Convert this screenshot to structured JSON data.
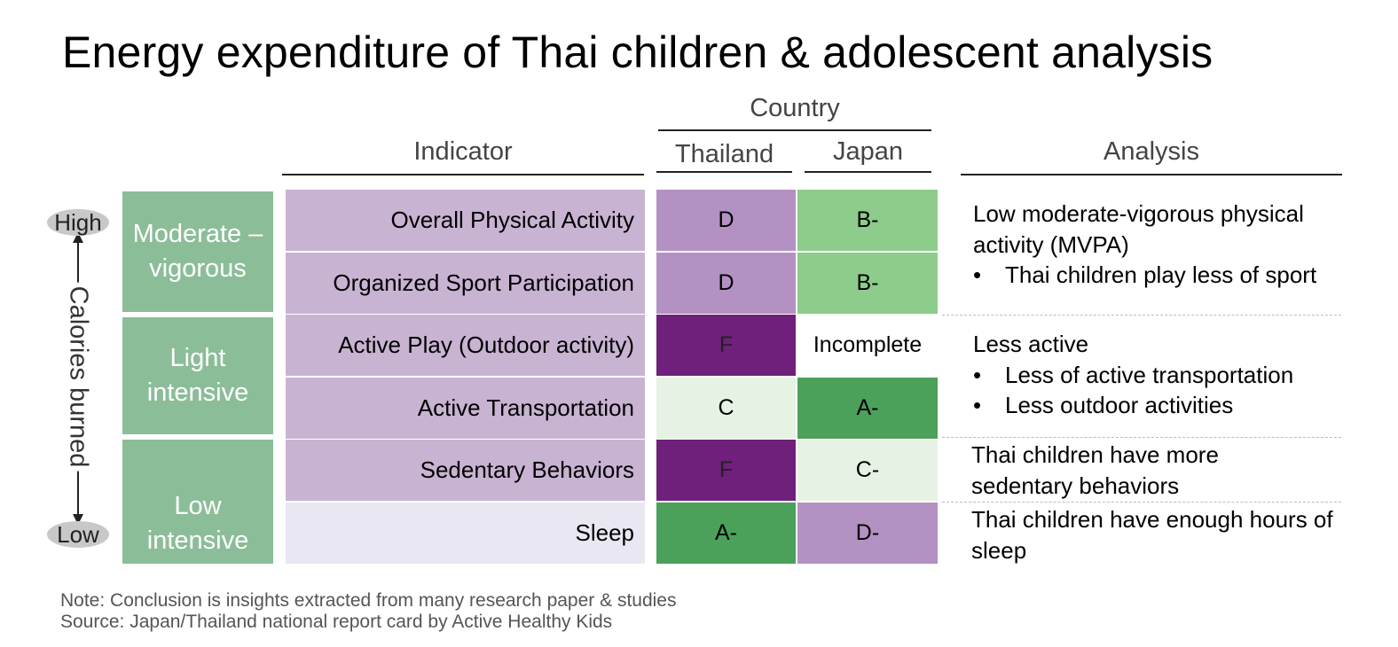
{
  "title": "Energy expenditure of Thai children & adolescent analysis",
  "headers": {
    "country": "Country",
    "indicator": "Indicator",
    "thailand": "Thailand",
    "japan": "Japan",
    "analysis": "Analysis"
  },
  "axis": {
    "high": "High",
    "low": "Low",
    "label": "Calories burned"
  },
  "groups": [
    {
      "line1": "Moderate –",
      "line2": "vigorous"
    },
    {
      "line1": "Light",
      "line2": "intensive"
    },
    {
      "line1": "Low",
      "line2": "intensive"
    }
  ],
  "rows": [
    {
      "indicator": "Overall Physical Activity",
      "thailand": "D",
      "japan": "B-",
      "indicator_bg": "#c9b3d3",
      "thailand_bg": "#b391c3",
      "japan_bg": "#8dcc8a"
    },
    {
      "indicator": "Organized Sport Participation",
      "thailand": "D",
      "japan": "B-",
      "indicator_bg": "#c9b3d3",
      "thailand_bg": "#b391c3",
      "japan_bg": "#8dcc8a"
    },
    {
      "indicator": "Active Play (Outdoor activity)",
      "thailand": "F",
      "japan": "Incomplete",
      "indicator_bg": "#c9b3d3",
      "thailand_bg": "#6e207b",
      "japan_bg": "#ffffff"
    },
    {
      "indicator": "Active Transportation",
      "thailand": "C",
      "japan": "A-",
      "indicator_bg": "#c9b3d3",
      "thailand_bg": "#e6f2e3",
      "japan_bg": "#4ba05a"
    },
    {
      "indicator": "Sedentary Behaviors",
      "thailand": "F",
      "japan": "C-",
      "indicator_bg": "#c9b3d3",
      "thailand_bg": "#6e207b",
      "japan_bg": "#e6f2e3"
    },
    {
      "indicator": "Sleep",
      "thailand": "A-",
      "japan": "D-",
      "indicator_bg": "#e9e7f1",
      "thailand_bg": "#4ba05a",
      "japan_bg": "#b391c3"
    }
  ],
  "analysis": [
    {
      "heading": "Low moderate-vigorous physical activity (MVPA)",
      "bullets": [
        "Thai children play less of sport"
      ]
    },
    {
      "heading": "Less active",
      "bullets": [
        "Less of active transportation",
        "Less outdoor activities"
      ]
    },
    {
      "heading": "Thai children have more sedentary behaviors",
      "bullets": []
    },
    {
      "heading": "Thai children have enough hours of sleep",
      "bullets": []
    }
  ],
  "notes": {
    "note": "Note: Conclusion is insights extracted from many research paper & studies",
    "source": "Source: Japan/Thailand national report card by Active Healthy Kids"
  },
  "colors": {
    "group_green": "#8cbd99",
    "grade_purple_dark": "#6e207b",
    "grade_purple": "#b391c3",
    "grade_green_dark": "#4ba05a",
    "grade_green": "#8dcc8a",
    "grade_pale": "#e6f2e3"
  }
}
